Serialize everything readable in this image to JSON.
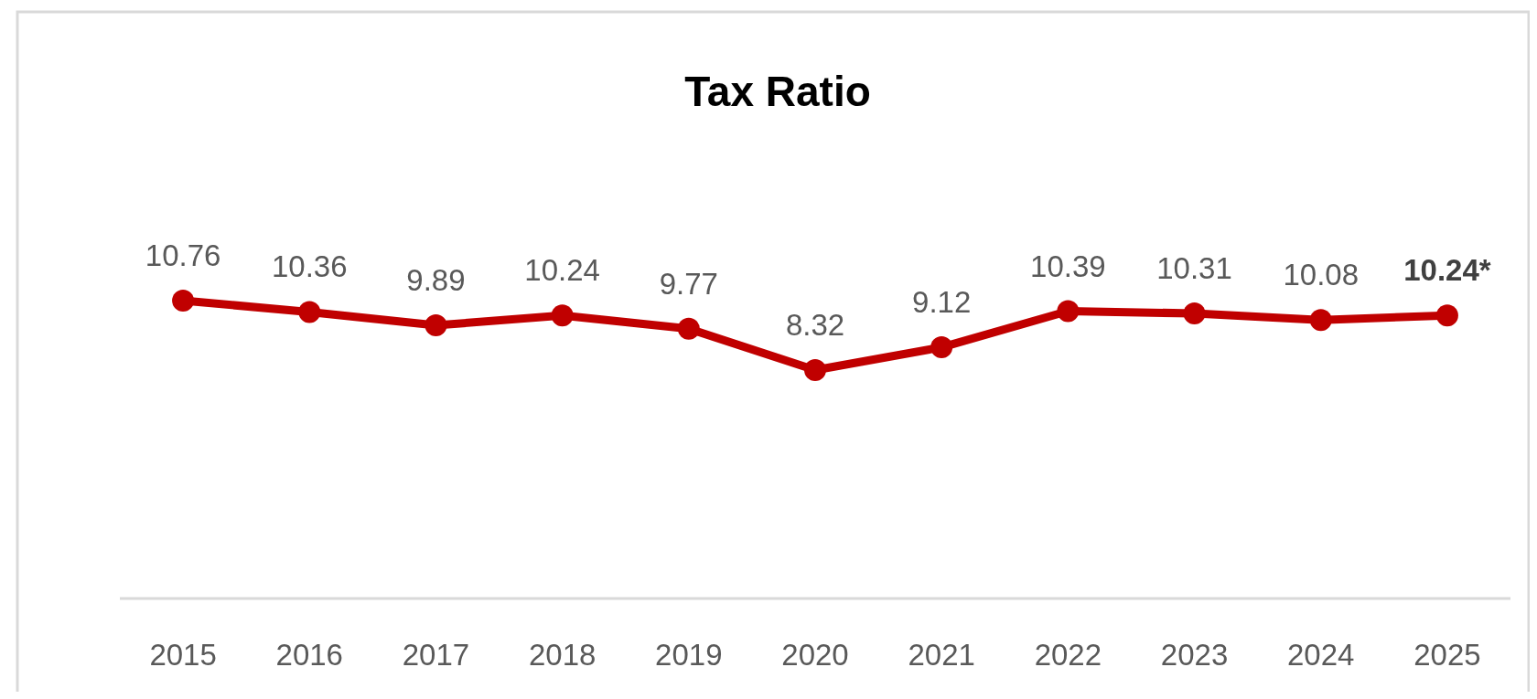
{
  "chart_data": {
    "type": "line",
    "title": "Tax Ratio",
    "categories": [
      "2015",
      "2016",
      "2017",
      "2018",
      "2019",
      "2020",
      "2021",
      "2022",
      "2023",
      "2024",
      "2025"
    ],
    "series": [
      {
        "color": "#c00000",
        "values": [
          10.76,
          10.36,
          9.89,
          10.24,
          9.77,
          8.32,
          9.12,
          10.39,
          10.31,
          10.08,
          10.24
        ],
        "value_labels": [
          "10.76",
          "10.36",
          "9.89",
          "10.24",
          "9.77",
          "8.32",
          "9.12",
          "10.39",
          "10.31",
          "10.08",
          "10.24*"
        ]
      }
    ],
    "tick_labels": "x",
    "marker": "circle",
    "line_style": "solid"
  }
}
